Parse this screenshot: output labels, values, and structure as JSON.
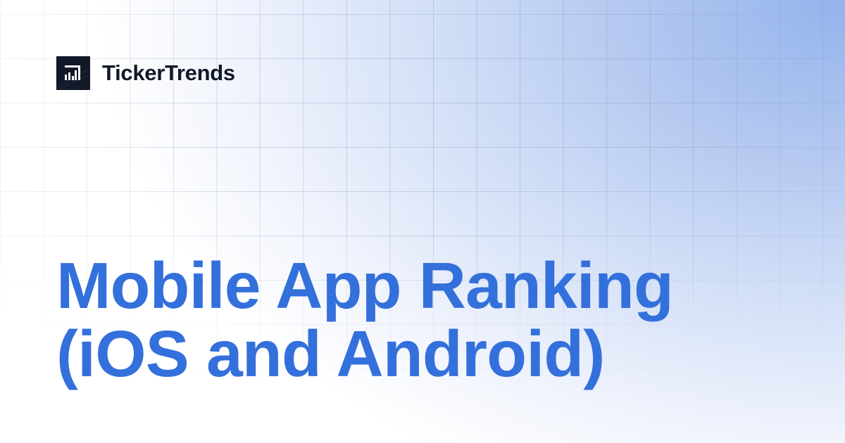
{
  "brand": {
    "name": "TickerTrends",
    "icon": "bar-chart-logo-icon"
  },
  "headline": {
    "line1": "Mobile App Ranking",
    "line2": "(iOS and Android)"
  },
  "colors": {
    "headline": "#3470dc",
    "brand_text": "#111827",
    "gradient_accent": "#94b3ec"
  }
}
